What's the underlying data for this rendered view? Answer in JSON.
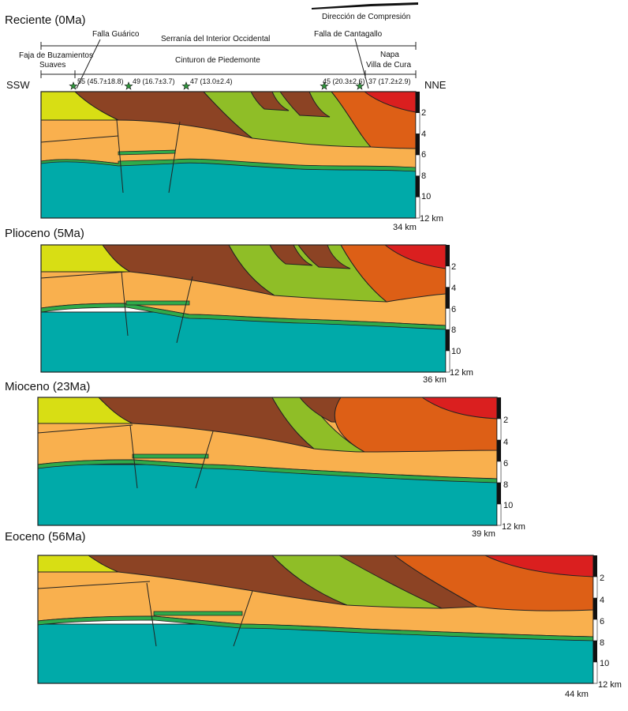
{
  "panels": [
    {
      "title": "Reciente (0Ma)",
      "width_label": "34 km"
    },
    {
      "title": "Plioceno (5Ma)",
      "width_label": "36 km"
    },
    {
      "title": "Mioceno (23Ma)",
      "width_label": "39 km"
    },
    {
      "title": "Eoceno (56Ma)",
      "width_label": "44 km"
    }
  ],
  "scale_ticks": [
    "2",
    "4",
    "6",
    "8",
    "10",
    "12 km"
  ],
  "orientation": {
    "left": "SSW",
    "right": "NNE"
  },
  "compression_label": "Dirección de Compresión",
  "top_labels": {
    "falla_guarico": "Falla Guárico",
    "serrania": "Serranía del Interior Occidental",
    "falla_cantagallo": "Falla de Cantagallo",
    "faja_line1": "Faja de Buzamientos",
    "faja_line2": "Suaves",
    "cinturon": "Cinturon de Piedemonte",
    "napa_line1": "Napa",
    "napa_line2": "Villa de Cura"
  },
  "samples": [
    {
      "label": "55 (45.7±18.8)"
    },
    {
      "label": "49 (16.7±3.7)"
    },
    {
      "label": "47 (13.0±2.4)"
    },
    {
      "label": "45 (20.3±2.6)"
    },
    {
      "label": "37 (17.2±2.9)"
    }
  ],
  "colors": {
    "basement": "#00aaa9",
    "lower_sediments": "#f9b04e",
    "thin_marker": "#2faa4a",
    "faja_unit": "#d8de14",
    "brown_unit": "#8c4324",
    "green_unit": "#8fbe27",
    "orange_unit": "#dd5f16",
    "red_unit": "#da1f1f",
    "sample_star": "#2f9a3c"
  }
}
